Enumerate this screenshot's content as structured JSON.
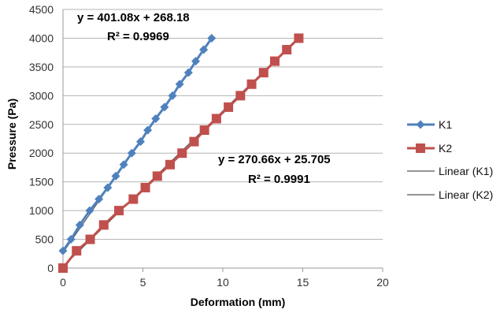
{
  "chart_data": {
    "type": "scatter",
    "xlabel": "Deformation (mm)",
    "ylabel": "Pressure (Pa)",
    "xlim": [
      0,
      20
    ],
    "ylim": [
      0,
      4500
    ],
    "x_ticks": [
      "0",
      "5",
      "10",
      "15",
      "20"
    ],
    "y_ticks": [
      "0",
      "500",
      "1000",
      "1500",
      "2000",
      "2500",
      "3000",
      "3500",
      "4000",
      "4500"
    ],
    "grid": "horizontal",
    "legend_position": "right",
    "series": [
      {
        "name": "K1",
        "marker": "diamond",
        "color": "#4F81BD",
        "x": [
          0,
          0.5,
          1.05,
          1.67,
          2.25,
          2.8,
          3.3,
          3.8,
          4.3,
          4.85,
          5.3,
          5.8,
          6.35,
          6.85,
          7.3,
          7.85,
          8.3,
          8.8,
          9.3
        ],
        "y": [
          300,
          500,
          750,
          1000,
          1200,
          1400,
          1600,
          1800,
          2000,
          2200,
          2400,
          2600,
          2800,
          3000,
          3200,
          3400,
          3600,
          3800,
          4000
        ]
      },
      {
        "name": "K2",
        "marker": "square",
        "color": "#C0504D",
        "x": [
          0,
          0.85,
          1.7,
          2.55,
          3.5,
          4.4,
          5.15,
          5.9,
          6.7,
          7.45,
          8.2,
          8.85,
          9.6,
          10.35,
          11.1,
          11.8,
          12.55,
          13.25,
          14.0,
          14.75
        ],
        "y": [
          0,
          300,
          500,
          750,
          1000,
          1200,
          1400,
          1600,
          1800,
          2000,
          2200,
          2400,
          2600,
          2800,
          3000,
          3200,
          3400,
          3600,
          3800,
          4000
        ]
      }
    ],
    "trendlines": [
      {
        "name": "Linear (K1)",
        "slope": 401.08,
        "intercept": 268.18,
        "x_range": [
          0,
          9.3
        ],
        "color": "#555555"
      },
      {
        "name": "Linear (K2)",
        "slope": 270.66,
        "intercept": 25.705,
        "x_range": [
          0,
          14.75
        ],
        "color": "#555555"
      }
    ],
    "annotations": {
      "k1_equation": "y = 401.08x + 268.18",
      "k1_r2": "R² = 0.9969",
      "k2_equation": "y = 270.66x + 25.705",
      "k2_r2": "R² = 0.9991"
    },
    "legend": [
      "K1",
      "K2",
      "Linear (K1)",
      "Linear (K2)"
    ]
  }
}
